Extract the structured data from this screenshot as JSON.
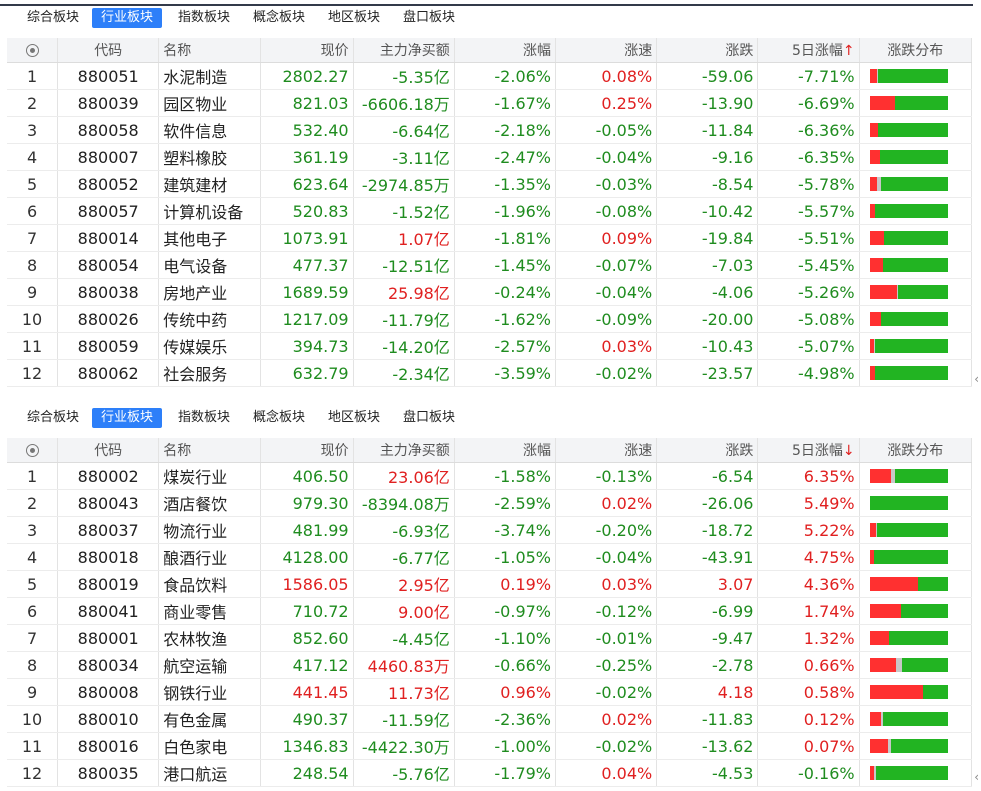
{
  "tabs": [
    "综合板块",
    "行业板块",
    "指数板块",
    "概念板块",
    "地区板块",
    "盘口板块"
  ],
  "active_tab": 1,
  "columns": [
    "代码",
    "名称",
    "现价",
    "主力净买额",
    "涨幅",
    "涨速",
    "涨跌",
    "5日涨幅",
    "涨跌分布"
  ],
  "panels": [
    {
      "sort_arrow": "↑",
      "rows": [
        {
          "i": "1",
          "code": "880051",
          "name": "水泥制造",
          "price": "2802.27",
          "net": "-5.35亿",
          "chg": "-2.06%",
          "speed": "0.08%",
          "diff": "-59.06",
          "d5": "-7.71%",
          "r": 0.1,
          "g": 0.01,
          "pc": "dn",
          "nc": "dn",
          "cc": "dn",
          "sc": "up",
          "dc": "dn",
          "d5c": "dn"
        },
        {
          "i": "2",
          "code": "880039",
          "name": "园区物业",
          "price": "821.03",
          "net": "-6606.18万",
          "chg": "-1.67%",
          "speed": "0.25%",
          "diff": "-13.90",
          "d5": "-6.69%",
          "r": 0.33,
          "g": 0,
          "pc": "dn",
          "nc": "dn",
          "cc": "dn",
          "sc": "up",
          "dc": "dn",
          "d5c": "dn"
        },
        {
          "i": "3",
          "code": "880058",
          "name": "软件信息",
          "price": "532.40",
          "net": "-6.64亿",
          "chg": "-2.18%",
          "speed": "-0.05%",
          "diff": "-11.84",
          "d5": "-6.36%",
          "r": 0.11,
          "g": 0,
          "pc": "dn",
          "nc": "dn",
          "cc": "dn",
          "sc": "dn",
          "dc": "dn",
          "d5c": "dn"
        },
        {
          "i": "4",
          "code": "880007",
          "name": "塑料橡胶",
          "price": "361.19",
          "net": "-3.11亿",
          "chg": "-2.47%",
          "speed": "-0.04%",
          "diff": "-9.16",
          "d5": "-6.35%",
          "r": 0.13,
          "g": 0,
          "pc": "dn",
          "nc": "dn",
          "cc": "dn",
          "sc": "dn",
          "dc": "dn",
          "d5c": "dn"
        },
        {
          "i": "5",
          "code": "880052",
          "name": "建筑建材",
          "price": "623.64",
          "net": "-2974.85万",
          "chg": "-1.35%",
          "speed": "-0.03%",
          "diff": "-8.54",
          "d5": "-5.78%",
          "r": 0.1,
          "g": 0.05,
          "pc": "dn",
          "nc": "dn",
          "cc": "dn",
          "sc": "dn",
          "dc": "dn",
          "d5c": "dn"
        },
        {
          "i": "6",
          "code": "880057",
          "name": "计算机设备",
          "price": "520.83",
          "net": "-1.52亿",
          "chg": "-1.96%",
          "speed": "-0.08%",
          "diff": "-10.42",
          "d5": "-5.57%",
          "r": 0.07,
          "g": 0,
          "pc": "dn",
          "nc": "dn",
          "cc": "dn",
          "sc": "dn",
          "dc": "dn",
          "d5c": "dn"
        },
        {
          "i": "7",
          "code": "880014",
          "name": "其他电子",
          "price": "1073.91",
          "net": "1.07亿",
          "chg": "-1.81%",
          "speed": "0.09%",
          "diff": "-19.84",
          "d5": "-5.51%",
          "r": 0.19,
          "g": 0,
          "pc": "dn",
          "nc": "up",
          "cc": "dn",
          "sc": "up",
          "dc": "dn",
          "d5c": "dn"
        },
        {
          "i": "8",
          "code": "880054",
          "name": "电气设备",
          "price": "477.37",
          "net": "-12.51亿",
          "chg": "-1.45%",
          "speed": "-0.07%",
          "diff": "-7.03",
          "d5": "-5.45%",
          "r": 0.17,
          "g": 0,
          "pc": "dn",
          "nc": "dn",
          "cc": "dn",
          "sc": "dn",
          "dc": "dn",
          "d5c": "dn"
        },
        {
          "i": "9",
          "code": "880038",
          "name": "房地产业",
          "price": "1689.59",
          "net": "25.98亿",
          "chg": "-0.24%",
          "speed": "-0.04%",
          "diff": "-4.06",
          "d5": "-5.26%",
          "r": 0.35,
          "g": 0.02,
          "pc": "dn",
          "nc": "up",
          "cc": "dn",
          "sc": "dn",
          "dc": "dn",
          "d5c": "dn"
        },
        {
          "i": "10",
          "code": "880026",
          "name": "传统中药",
          "price": "1217.09",
          "net": "-11.79亿",
          "chg": "-1.62%",
          "speed": "-0.09%",
          "diff": "-20.00",
          "d5": "-5.08%",
          "r": 0.15,
          "g": 0,
          "pc": "dn",
          "nc": "dn",
          "cc": "dn",
          "sc": "dn",
          "dc": "dn",
          "d5c": "dn"
        },
        {
          "i": "11",
          "code": "880059",
          "name": "传媒娱乐",
          "price": "394.73",
          "net": "-14.20亿",
          "chg": "-2.57%",
          "speed": "0.03%",
          "diff": "-10.43",
          "d5": "-5.07%",
          "r": 0.05,
          "g": 0.02,
          "pc": "dn",
          "nc": "dn",
          "cc": "dn",
          "sc": "up",
          "dc": "dn",
          "d5c": "dn"
        },
        {
          "i": "12",
          "code": "880062",
          "name": "社会服务",
          "price": "632.79",
          "net": "-2.34亿",
          "chg": "-3.59%",
          "speed": "-0.02%",
          "diff": "-23.57",
          "d5": "-4.98%",
          "r": 0.07,
          "g": 0,
          "pc": "dn",
          "nc": "dn",
          "cc": "dn",
          "sc": "dn",
          "dc": "dn",
          "d5c": "dn"
        }
      ]
    },
    {
      "sort_arrow": "↓",
      "rows": [
        {
          "i": "1",
          "code": "880002",
          "name": "煤炭行业",
          "price": "406.50",
          "net": "23.06亿",
          "chg": "-1.58%",
          "speed": "-0.13%",
          "diff": "-6.54",
          "d5": "6.35%",
          "r": 0.27,
          "g": 0.05,
          "pc": "dn",
          "nc": "up",
          "cc": "dn",
          "sc": "dn",
          "dc": "dn",
          "d5c": "up"
        },
        {
          "i": "2",
          "code": "880043",
          "name": "酒店餐饮",
          "price": "979.30",
          "net": "-8394.08万",
          "chg": "-2.59%",
          "speed": "0.02%",
          "diff": "-26.06",
          "d5": "5.49%",
          "r": 0,
          "g": 0,
          "pc": "dn",
          "nc": "dn",
          "cc": "dn",
          "sc": "up",
          "dc": "dn",
          "d5c": "up"
        },
        {
          "i": "3",
          "code": "880037",
          "name": "物流行业",
          "price": "481.99",
          "net": "-6.93亿",
          "chg": "-3.74%",
          "speed": "-0.20%",
          "diff": "-18.72",
          "d5": "5.22%",
          "r": 0.08,
          "g": 0.02,
          "pc": "dn",
          "nc": "dn",
          "cc": "dn",
          "sc": "dn",
          "dc": "dn",
          "d5c": "up"
        },
        {
          "i": "4",
          "code": "880018",
          "name": "酿酒行业",
          "price": "4128.00",
          "net": "-6.77亿",
          "chg": "-1.05%",
          "speed": "-0.04%",
          "diff": "-43.91",
          "d5": "4.75%",
          "r": 0.05,
          "g": 0,
          "pc": "dn",
          "nc": "dn",
          "cc": "dn",
          "sc": "dn",
          "dc": "dn",
          "d5c": "up"
        },
        {
          "i": "5",
          "code": "880019",
          "name": "食品饮料",
          "price": "1586.05",
          "net": "2.95亿",
          "chg": "0.19%",
          "speed": "0.03%",
          "diff": "3.07",
          "d5": "4.36%",
          "r": 0.62,
          "g": 0,
          "pc": "up",
          "nc": "up",
          "cc": "up",
          "sc": "up",
          "dc": "up",
          "d5c": "up"
        },
        {
          "i": "6",
          "code": "880041",
          "name": "商业零售",
          "price": "710.72",
          "net": "9.00亿",
          "chg": "-0.97%",
          "speed": "-0.12%",
          "diff": "-6.99",
          "d5": "1.74%",
          "r": 0.4,
          "g": 0,
          "pc": "dn",
          "nc": "up",
          "cc": "dn",
          "sc": "dn",
          "dc": "dn",
          "d5c": "up"
        },
        {
          "i": "7",
          "code": "880001",
          "name": "农林牧渔",
          "price": "852.60",
          "net": "-4.45亿",
          "chg": "-1.10%",
          "speed": "-0.01%",
          "diff": "-9.47",
          "d5": "1.32%",
          "r": 0.25,
          "g": 0,
          "pc": "dn",
          "nc": "dn",
          "cc": "dn",
          "sc": "dn",
          "dc": "dn",
          "d5c": "up"
        },
        {
          "i": "8",
          "code": "880034",
          "name": "航空运输",
          "price": "417.12",
          "net": "4460.83万",
          "chg": "-0.66%",
          "speed": "-0.25%",
          "diff": "-2.78",
          "d5": "0.66%",
          "r": 0.34,
          "g": 0.07,
          "pc": "dn",
          "nc": "up",
          "cc": "dn",
          "sc": "dn",
          "dc": "dn",
          "d5c": "up"
        },
        {
          "i": "9",
          "code": "880008",
          "name": "钢铁行业",
          "price": "441.45",
          "net": "11.73亿",
          "chg": "0.96%",
          "speed": "-0.02%",
          "diff": "4.18",
          "d5": "0.58%",
          "r": 0.68,
          "g": 0,
          "pc": "up",
          "nc": "up",
          "cc": "up",
          "sc": "dn",
          "dc": "up",
          "d5c": "up"
        },
        {
          "i": "10",
          "code": "880010",
          "name": "有色金属",
          "price": "490.37",
          "net": "-11.59亿",
          "chg": "-2.36%",
          "speed": "0.02%",
          "diff": "-11.83",
          "d5": "0.12%",
          "r": 0.15,
          "g": 0.02,
          "pc": "dn",
          "nc": "dn",
          "cc": "dn",
          "sc": "up",
          "dc": "dn",
          "d5c": "up"
        },
        {
          "i": "11",
          "code": "880016",
          "name": "白色家电",
          "price": "1346.83",
          "net": "-4422.30万",
          "chg": "-1.00%",
          "speed": "-0.02%",
          "diff": "-13.62",
          "d5": "0.07%",
          "r": 0.24,
          "g": 0.04,
          "pc": "dn",
          "nc": "dn",
          "cc": "dn",
          "sc": "dn",
          "dc": "dn",
          "d5c": "up"
        },
        {
          "i": "12",
          "code": "880035",
          "name": "港口航运",
          "price": "248.54",
          "net": "-5.76亿",
          "chg": "-1.79%",
          "speed": "0.04%",
          "diff": "-4.53",
          "d5": "-0.16%",
          "r": 0.06,
          "g": 0.02,
          "pc": "dn",
          "nc": "dn",
          "cc": "dn",
          "sc": "up",
          "dc": "dn",
          "d5c": "dn"
        }
      ]
    }
  ],
  "scroll_icon": "‹"
}
